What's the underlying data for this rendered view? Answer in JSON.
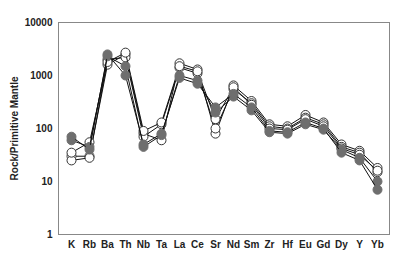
{
  "chart_data": {
    "type": "line",
    "y_label": "Rock/Primitive Mantle",
    "categories": [
      "K",
      "Rb",
      "Ba",
      "Th",
      "Nb",
      "Ta",
      "La",
      "Ce",
      "Sr",
      "Nd",
      "Sm",
      "Zr",
      "Hf",
      "Eu",
      "Gd",
      "Dy",
      "Y",
      "Yb"
    ],
    "series": [
      {
        "color": "#333333",
        "marker": "open",
        "values": [
          30,
          30,
          1600,
          2500,
          80,
          60,
          1700,
          1300,
          80,
          650,
          330,
          120,
          110,
          180,
          130,
          50,
          38,
          18
        ]
      },
      {
        "color": "#333333",
        "marker": "open",
        "values": [
          25,
          28,
          2000,
          2200,
          70,
          120,
          1400,
          1100,
          100,
          550,
          300,
          110,
          100,
          160,
          120,
          45,
          35,
          15
        ]
      },
      {
        "color": "#333333",
        "marker": "open",
        "values": [
          35,
          55,
          1800,
          2700,
          90,
          130,
          1500,
          1200,
          150,
          600,
          280,
          100,
          95,
          150,
          110,
          42,
          32,
          16
        ]
      },
      {
        "color": "#6e6e6e",
        "marker": "filled",
        "values": [
          60,
          45,
          2300,
          1500,
          45,
          75,
          1000,
          800,
          200,
          400,
          220,
          85,
          80,
          120,
          95,
          40,
          28,
          10
        ]
      },
      {
        "color": "#6e6e6e",
        "marker": "filled",
        "values": [
          70,
          40,
          2500,
          1000,
          50,
          80,
          900,
          700,
          250,
          450,
          250,
          90,
          85,
          130,
          100,
          35,
          25,
          7
        ]
      }
    ],
    "log": "y",
    "ylim": [
      1,
      10000
    ],
    "yticks": [
      1,
      10,
      100,
      1000,
      10000
    ],
    "grid": false
  }
}
